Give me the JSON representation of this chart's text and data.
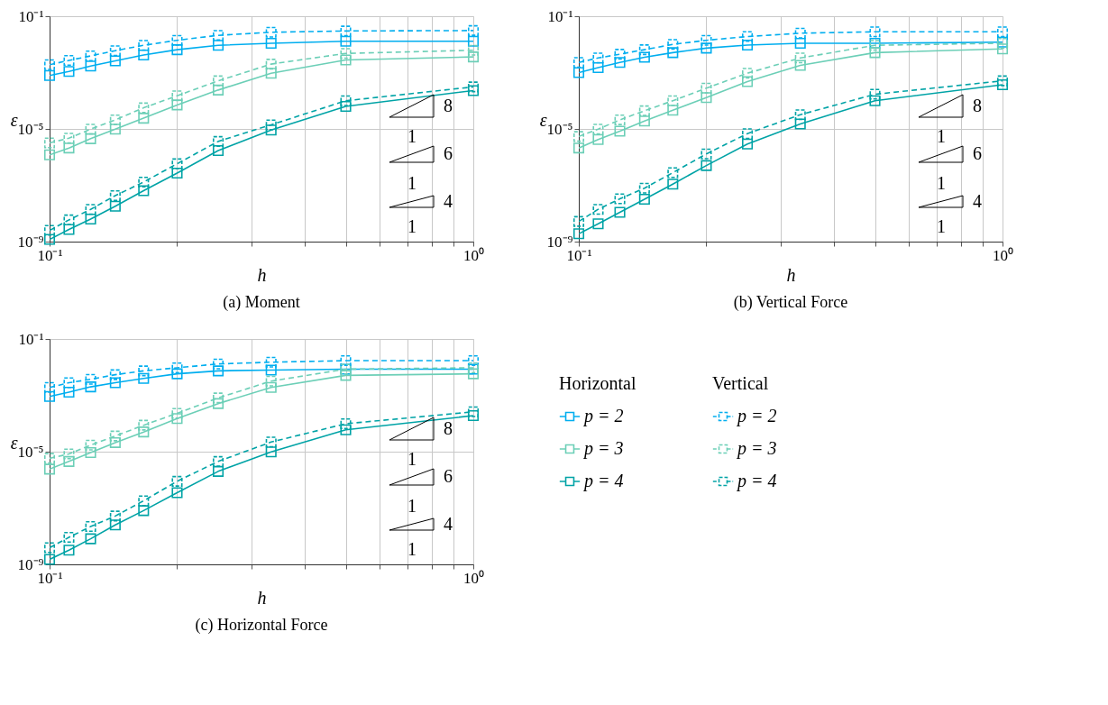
{
  "chart_data": [
    {
      "type": "line",
      "title": "(a) Moment",
      "xlabel": "h",
      "ylabel": "ε",
      "log": "xy",
      "grid": true,
      "marker": "square",
      "x": [
        0.1,
        0.1111,
        0.125,
        0.1429,
        0.1667,
        0.2,
        0.25,
        0.3333,
        0.5,
        1
      ],
      "xlim": [
        0.1,
        1
      ],
      "ylim": [
        1e-09,
        0.1
      ],
      "xticks": [
        {
          "value": 0.1,
          "label": "10⁻¹"
        },
        {
          "value": 0.2,
          "label": null
        },
        {
          "value": 0.3,
          "label": null
        },
        {
          "value": 0.4,
          "label": null
        },
        {
          "value": 0.5,
          "label": null
        },
        {
          "value": 0.6,
          "label": null
        },
        {
          "value": 0.7,
          "label": null
        },
        {
          "value": 0.8,
          "label": null
        },
        {
          "value": 0.9,
          "label": null
        },
        {
          "value": 1,
          "label": "10⁰"
        }
      ],
      "yticks": [
        {
          "value": 1e-09,
          "label": "10⁻⁹"
        },
        {
          "value": 1e-05,
          "label": "10⁻⁵"
        },
        {
          "value": 0.1,
          "label": "10⁻¹"
        }
      ],
      "annotations": [
        "8",
        "1",
        "6",
        "1",
        "4",
        "1"
      ],
      "series": [
        {
          "color": "#00aeef",
          "line_style": "solid",
          "values": [
            0.00079,
            0.0011,
            0.0017,
            0.0026,
            0.0042,
            0.0065,
            0.0093,
            0.011,
            0.013,
            0.013
          ]
        },
        {
          "color": "#00aeef",
          "line_style": "dashed",
          "values": [
            0.0019,
            0.0027,
            0.0039,
            0.006,
            0.0093,
            0.014,
            0.021,
            0.027,
            0.03,
            0.031
          ]
        },
        {
          "color": "#6ccfb7",
          "line_style": "solid",
          "values": [
            1.2e-06,
            2.1e-06,
            4.5e-06,
            9.8e-06,
            2.4e-05,
            7.1e-05,
            0.00024,
            0.00095,
            0.0028,
            0.0036
          ]
        },
        {
          "color": "#6ccfb7",
          "line_style": "dashed",
          "values": [
            3.2e-06,
            4.7e-06,
            9.8e-06,
            2.1e-05,
            5.6e-05,
            0.00015,
            0.00051,
            0.002,
            0.0048,
            0.0062
          ]
        },
        {
          "color": "#00a3a6",
          "line_style": "solid",
          "values": [
            1.2e-09,
            2.7e-09,
            6.3e-09,
            1.8e-08,
            6.4e-08,
            2.7e-07,
            1.7e-06,
            9.1e-06,
            6.3e-05,
            0.00023
          ]
        },
        {
          "color": "#00a3a6",
          "line_style": "dashed",
          "values": [
            2.5e-09,
            5.9e-09,
            1.4e-08,
            4.3e-08,
            1.3e-07,
            5.8e-07,
            3.6e-06,
            1.4e-05,
            0.0001,
            0.00031
          ]
        }
      ]
    },
    {
      "type": "line",
      "title": "(b) Vertical Force",
      "xlabel": "h",
      "ylabel": "ε",
      "log": "xy",
      "grid": true,
      "marker": "square",
      "x": [
        0.1,
        0.1111,
        0.125,
        0.1429,
        0.1667,
        0.2,
        0.25,
        0.3333,
        0.5,
        1
      ],
      "xlim": [
        0.1,
        1
      ],
      "ylim": [
        1e-09,
        0.1
      ],
      "xticks": [
        {
          "value": 0.1,
          "label": "10⁻¹"
        },
        {
          "value": 0.2,
          "label": null
        },
        {
          "value": 0.3,
          "label": null
        },
        {
          "value": 0.4,
          "label": null
        },
        {
          "value": 0.5,
          "label": null
        },
        {
          "value": 0.6,
          "label": null
        },
        {
          "value": 0.7,
          "label": null
        },
        {
          "value": 0.8,
          "label": null
        },
        {
          "value": 0.9,
          "label": null
        },
        {
          "value": 1,
          "label": "10⁰"
        }
      ],
      "yticks": [
        {
          "value": 1e-09,
          "label": "10⁻⁹"
        },
        {
          "value": 1e-05,
          "label": "10⁻⁵"
        },
        {
          "value": 0.1,
          "label": "10⁻¹"
        }
      ],
      "annotations": [
        "8",
        "1",
        "6",
        "1",
        "4",
        "1"
      ],
      "series": [
        {
          "color": "#00aeef",
          "line_style": "solid",
          "values": [
            0.001,
            0.0015,
            0.0023,
            0.0035,
            0.0051,
            0.0074,
            0.0095,
            0.011,
            0.011,
            0.012
          ]
        },
        {
          "color": "#00aeef",
          "line_style": "dashed",
          "values": [
            0.0023,
            0.0033,
            0.0045,
            0.0065,
            0.01,
            0.014,
            0.019,
            0.025,
            0.028,
            0.028
          ]
        },
        {
          "color": "#6ccfb7",
          "line_style": "solid",
          "values": [
            2.1e-06,
            4.2e-06,
            8.3e-06,
            1.9e-05,
            4.6e-05,
            0.00013,
            0.00048,
            0.0018,
            0.0051,
            0.0069
          ]
        },
        {
          "color": "#6ccfb7",
          "line_style": "dashed",
          "values": [
            5.4e-06,
            9.8e-06,
            2.1e-05,
            4.4e-05,
            0.0001,
            0.00028,
            0.00095,
            0.0033,
            0.0093,
            0.011
          ]
        },
        {
          "color": "#00a3a6",
          "line_style": "solid",
          "values": [
            1.9e-09,
            4.3e-09,
            1.1e-08,
            3.2e-08,
            1.1e-07,
            5e-07,
            2.9e-06,
            1.5e-05,
            0.0001,
            0.00037
          ]
        },
        {
          "color": "#00a3a6",
          "line_style": "dashed",
          "values": [
            5.2e-09,
            1.4e-08,
            3.3e-08,
            7.9e-08,
            2.8e-07,
            1.3e-06,
            6.8e-06,
            3.2e-05,
            0.00017,
            0.00051
          ]
        }
      ]
    },
    {
      "type": "line",
      "title": "(c) Horizontal Force",
      "xlabel": "h",
      "ylabel": "ε",
      "log": "xy",
      "grid": true,
      "marker": "square",
      "legend": "right",
      "x": [
        0.1,
        0.1111,
        0.125,
        0.1429,
        0.1667,
        0.2,
        0.25,
        0.3333,
        0.5,
        1
      ],
      "xlim": [
        0.1,
        1
      ],
      "ylim": [
        1e-09,
        0.1
      ],
      "xticks": [
        {
          "value": 0.1,
          "label": "10⁻¹"
        },
        {
          "value": 0.2,
          "label": null
        },
        {
          "value": 0.3,
          "label": null
        },
        {
          "value": 0.4,
          "label": null
        },
        {
          "value": 0.5,
          "label": null
        },
        {
          "value": 0.6,
          "label": null
        },
        {
          "value": 0.7,
          "label": null
        },
        {
          "value": 0.8,
          "label": null
        },
        {
          "value": 0.9,
          "label": null
        },
        {
          "value": 1,
          "label": "10⁰"
        }
      ],
      "yticks": [
        {
          "value": 1e-09,
          "label": "10⁻⁹"
        },
        {
          "value": 1e-05,
          "label": "10⁻⁵"
        },
        {
          "value": 0.1,
          "label": "10⁻¹"
        }
      ],
      "annotations": [
        "8",
        "1",
        "6",
        "1",
        "4",
        "1",
        "Horizontal",
        "Vertical"
      ],
      "series": [
        {
          "name": "p = 2",
          "color": "#00aeef",
          "line_style": "solid",
          "values": [
            0.00091,
            0.0013,
            0.002,
            0.0028,
            0.004,
            0.0058,
            0.0074,
            0.0079,
            0.0085,
            0.0085
          ]
        },
        {
          "name": "p = 2",
          "color": "#00aeef",
          "line_style": "dashed",
          "values": [
            0.0019,
            0.0028,
            0.0037,
            0.0054,
            0.0074,
            0.0095,
            0.013,
            0.015,
            0.017,
            0.017
          ]
        },
        {
          "name": "p = 3",
          "color": "#6ccfb7",
          "line_style": "solid",
          "values": [
            2.4e-06,
            4.5e-06,
            9.3e-06,
            2.1e-05,
            5e-05,
            0.00015,
            0.00051,
            0.0019,
            0.0051,
            0.0058
          ]
        },
        {
          "name": "p = 3",
          "color": "#6ccfb7",
          "line_style": "dashed",
          "values": [
            5.8e-06,
            8.3e-06,
            1.7e-05,
            3.6e-05,
            8.7e-05,
            0.00023,
            0.00081,
            0.0032,
            0.0085,
            0.0095
          ]
        },
        {
          "name": "p = 4",
          "color": "#00a3a6",
          "line_style": "solid",
          "values": [
            1.5e-09,
            3.2e-09,
            8.1e-09,
            2.5e-08,
            8.1e-08,
            3.5e-07,
            2e-06,
            9.8e-06,
            6e-05,
            0.00019
          ]
        },
        {
          "name": "p = 4",
          "color": "#00a3a6",
          "line_style": "dashed",
          "values": [
            3.9e-09,
            9.1e-09,
            2.2e-08,
            5.2e-08,
            1.8e-07,
            8.9e-07,
            4.5e-06,
            2.2e-05,
            9.8e-05,
            0.00026
          ]
        }
      ]
    }
  ]
}
